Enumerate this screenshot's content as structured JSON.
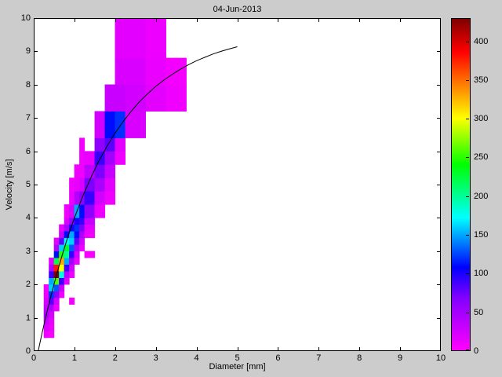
{
  "title": "04-Jun-2013",
  "axes": {
    "xlabel": "Diameter [mm]",
    "ylabel": "Velocity [m/s]",
    "x_ticks": [
      0,
      1,
      2,
      3,
      4,
      5,
      6,
      7,
      8,
      9,
      10
    ],
    "y_ticks": [
      0,
      1,
      2,
      3,
      4,
      5,
      6,
      7,
      8,
      9,
      10
    ],
    "xlim": [
      0,
      10
    ],
    "ylim": [
      0,
      10
    ]
  },
  "colorbar": {
    "min": 0,
    "max": 430,
    "ticks": [
      0,
      50,
      100,
      150,
      200,
      250,
      300,
      350,
      400
    ]
  },
  "colors": {
    "figure_bg": "#cccccc",
    "axes_bg": "#ffffff",
    "axis_line": "#000000",
    "curve": "#000000"
  },
  "colormap": [
    {
      "t": 0.0,
      "color": "#ff00ff"
    },
    {
      "t": 0.16,
      "color": "#8000ff"
    },
    {
      "t": 0.25,
      "color": "#0000ff"
    },
    {
      "t": 0.4,
      "color": "#00ffff"
    },
    {
      "t": 0.56,
      "color": "#00ff00"
    },
    {
      "t": 0.7,
      "color": "#ffff00"
    },
    {
      "t": 0.8,
      "color": "#ff8000"
    },
    {
      "t": 0.9,
      "color": "#ff0000"
    },
    {
      "t": 1.0,
      "color": "#800000"
    }
  ],
  "chart_data": {
    "type": "heatmap",
    "title": "04-Jun-2013",
    "xlabel": "Diameter [mm]",
    "ylabel": "Velocity [m/s]",
    "xlim": [
      0,
      10
    ],
    "ylim": [
      0,
      10
    ],
    "grid": false,
    "colorbar_range": [
      0,
      430
    ],
    "colorbar_ticks": [
      0,
      50,
      100,
      150,
      200,
      250,
      300,
      350,
      400
    ],
    "cells_format": [
      "d_min_mm",
      "d_max_mm",
      "v_min_ms",
      "v_max_ms",
      "count"
    ],
    "cells": [
      [
        0.25,
        0.375,
        0.4,
        0.6,
        8
      ],
      [
        0.25,
        0.375,
        0.6,
        0.8,
        18
      ],
      [
        0.25,
        0.375,
        0.8,
        1.0,
        30
      ],
      [
        0.25,
        0.375,
        1.0,
        1.2,
        45
      ],
      [
        0.25,
        0.375,
        1.2,
        1.4,
        35
      ],
      [
        0.25,
        0.375,
        1.4,
        1.6,
        22
      ],
      [
        0.25,
        0.375,
        1.6,
        1.8,
        12
      ],
      [
        0.25,
        0.375,
        1.8,
        2.0,
        8
      ],
      [
        0.375,
        0.5,
        0.4,
        0.6,
        5
      ],
      [
        0.375,
        0.5,
        0.6,
        0.8,
        8
      ],
      [
        0.375,
        0.5,
        0.8,
        1.0,
        12
      ],
      [
        0.375,
        0.5,
        1.0,
        1.2,
        22
      ],
      [
        0.375,
        0.5,
        1.2,
        1.4,
        45
      ],
      [
        0.375,
        0.5,
        1.4,
        1.6,
        80
      ],
      [
        0.375,
        0.5,
        1.6,
        1.8,
        120
      ],
      [
        0.375,
        0.5,
        1.8,
        2.0,
        160
      ],
      [
        0.375,
        0.5,
        2.0,
        2.2,
        150
      ],
      [
        0.375,
        0.5,
        2.2,
        2.4,
        90
      ],
      [
        0.375,
        0.5,
        2.4,
        2.6,
        40
      ],
      [
        0.375,
        0.5,
        2.6,
        2.8,
        15
      ],
      [
        0.5,
        0.625,
        1.2,
        1.4,
        10
      ],
      [
        0.5,
        0.625,
        1.4,
        1.6,
        20
      ],
      [
        0.5,
        0.625,
        1.6,
        1.8,
        60
      ],
      [
        0.5,
        0.625,
        1.8,
        2.0,
        130
      ],
      [
        0.5,
        0.625,
        2.0,
        2.2,
        260
      ],
      [
        0.5,
        0.625,
        2.2,
        2.4,
        430
      ],
      [
        0.5,
        0.625,
        2.4,
        2.6,
        380
      ],
      [
        0.5,
        0.625,
        2.6,
        2.8,
        220
      ],
      [
        0.5,
        0.625,
        2.8,
        3.0,
        110
      ],
      [
        0.5,
        0.625,
        3.0,
        3.2,
        40
      ],
      [
        0.5,
        0.625,
        3.2,
        3.4,
        15
      ],
      [
        0.625,
        0.75,
        1.6,
        1.8,
        10
      ],
      [
        0.625,
        0.75,
        1.8,
        2.0,
        30
      ],
      [
        0.625,
        0.75,
        2.0,
        2.2,
        90
      ],
      [
        0.625,
        0.75,
        2.2,
        2.4,
        180
      ],
      [
        0.625,
        0.75,
        2.4,
        2.6,
        300
      ],
      [
        0.625,
        0.75,
        2.6,
        2.8,
        330
      ],
      [
        0.625,
        0.75,
        2.8,
        3.0,
        250
      ],
      [
        0.625,
        0.75,
        3.0,
        3.2,
        160
      ],
      [
        0.625,
        0.75,
        3.2,
        3.4,
        80
      ],
      [
        0.625,
        0.75,
        3.4,
        3.6,
        30
      ],
      [
        0.625,
        0.75,
        3.6,
        3.8,
        12
      ],
      [
        0.75,
        0.875,
        2.0,
        2.2,
        15
      ],
      [
        0.75,
        0.875,
        2.2,
        2.4,
        40
      ],
      [
        0.75,
        0.875,
        2.4,
        2.6,
        90
      ],
      [
        0.75,
        0.875,
        2.6,
        2.8,
        150
      ],
      [
        0.75,
        0.875,
        2.8,
        3.0,
        200
      ],
      [
        0.75,
        0.875,
        3.0,
        3.2,
        230
      ],
      [
        0.75,
        0.875,
        3.2,
        3.4,
        170
      ],
      [
        0.75,
        0.875,
        3.4,
        3.6,
        110
      ],
      [
        0.75,
        0.875,
        3.6,
        3.8,
        50
      ],
      [
        0.75,
        0.875,
        3.8,
        4.0,
        20
      ],
      [
        0.75,
        0.875,
        4.0,
        4.4,
        8
      ],
      [
        0.875,
        1.0,
        1.4,
        1.6,
        6
      ],
      [
        0.875,
        1.0,
        2.2,
        2.4,
        10
      ],
      [
        0.875,
        1.0,
        2.4,
        2.6,
        25
      ],
      [
        0.875,
        1.0,
        2.6,
        2.8,
        50
      ],
      [
        0.875,
        1.0,
        2.8,
        3.0,
        90
      ],
      [
        0.875,
        1.0,
        3.0,
        3.2,
        130
      ],
      [
        0.875,
        1.0,
        3.2,
        3.4,
        160
      ],
      [
        0.875,
        1.0,
        3.4,
        3.6,
        150
      ],
      [
        0.875,
        1.0,
        3.6,
        3.8,
        100
      ],
      [
        0.875,
        1.0,
        3.8,
        4.0,
        60
      ],
      [
        0.875,
        1.0,
        4.0,
        4.4,
        25
      ],
      [
        0.875,
        1.0,
        4.4,
        4.8,
        10
      ],
      [
        0.875,
        1.0,
        4.8,
        5.2,
        8
      ],
      [
        1.0,
        1.125,
        2.6,
        2.8,
        10
      ],
      [
        1.0,
        1.125,
        2.8,
        3.0,
        20
      ],
      [
        1.0,
        1.125,
        3.0,
        3.2,
        45
      ],
      [
        1.0,
        1.125,
        3.2,
        3.4,
        80
      ],
      [
        1.0,
        1.125,
        3.4,
        3.6,
        110
      ],
      [
        1.0,
        1.125,
        3.6,
        3.8,
        120
      ],
      [
        1.0,
        1.125,
        3.8,
        4.0,
        100
      ],
      [
        1.0,
        1.125,
        4.0,
        4.4,
        150
      ],
      [
        1.0,
        1.125,
        4.4,
        4.8,
        40
      ],
      [
        1.0,
        1.125,
        4.8,
        5.2,
        12
      ],
      [
        1.0,
        1.125,
        5.2,
        5.6,
        8
      ],
      [
        1.125,
        1.25,
        3.0,
        3.2,
        10
      ],
      [
        1.125,
        1.25,
        3.2,
        3.4,
        25
      ],
      [
        1.125,
        1.25,
        3.4,
        3.6,
        45
      ],
      [
        1.125,
        1.25,
        3.6,
        3.8,
        70
      ],
      [
        1.125,
        1.25,
        3.8,
        4.0,
        90
      ],
      [
        1.125,
        1.25,
        4.0,
        4.4,
        110
      ],
      [
        1.125,
        1.25,
        4.4,
        4.8,
        60
      ],
      [
        1.125,
        1.25,
        4.8,
        5.2,
        20
      ],
      [
        1.125,
        1.25,
        5.2,
        5.6,
        8
      ],
      [
        1.125,
        1.25,
        5.6,
        6.0,
        8
      ],
      [
        1.125,
        1.25,
        6.0,
        6.4,
        6
      ],
      [
        1.25,
        1.5,
        2.8,
        3.0,
        6
      ],
      [
        1.25,
        1.5,
        3.4,
        3.6,
        8
      ],
      [
        1.25,
        1.5,
        3.6,
        3.8,
        15
      ],
      [
        1.25,
        1.5,
        3.8,
        4.0,
        30
      ],
      [
        1.25,
        1.5,
        4.0,
        4.4,
        60
      ],
      [
        1.25,
        1.5,
        4.4,
        4.8,
        90
      ],
      [
        1.25,
        1.5,
        4.8,
        5.2,
        70
      ],
      [
        1.25,
        1.5,
        5.2,
        5.6,
        35
      ],
      [
        1.25,
        1.5,
        5.6,
        6.0,
        12
      ],
      [
        1.5,
        1.75,
        4.0,
        4.4,
        10
      ],
      [
        1.5,
        1.75,
        4.4,
        4.8,
        25
      ],
      [
        1.5,
        1.75,
        4.8,
        5.2,
        45
      ],
      [
        1.5,
        1.75,
        5.2,
        5.6,
        70
      ],
      [
        1.5,
        1.75,
        5.6,
        6.0,
        90
      ],
      [
        1.5,
        1.75,
        6.0,
        6.4,
        60
      ],
      [
        1.5,
        1.75,
        6.4,
        7.2,
        25
      ],
      [
        1.75,
        2.0,
        4.4,
        4.8,
        8
      ],
      [
        1.75,
        2.0,
        4.8,
        5.2,
        15
      ],
      [
        1.75,
        2.0,
        5.2,
        5.6,
        30
      ],
      [
        1.75,
        2.0,
        5.6,
        6.0,
        50
      ],
      [
        1.75,
        2.0,
        6.0,
        6.4,
        80
      ],
      [
        1.75,
        2.0,
        6.4,
        7.2,
        110
      ],
      [
        1.75,
        2.0,
        7.2,
        8.0,
        30
      ],
      [
        2.0,
        2.25,
        5.6,
        6.0,
        8
      ],
      [
        2.0,
        2.25,
        6.0,
        6.4,
        15
      ],
      [
        2.0,
        2.25,
        6.4,
        7.2,
        120
      ],
      [
        2.0,
        2.25,
        7.2,
        8.0,
        30
      ],
      [
        2.0,
        2.25,
        8.0,
        8.8,
        20
      ],
      [
        2.0,
        2.25,
        8.8,
        10.0,
        15
      ],
      [
        2.25,
        2.75,
        6.4,
        7.2,
        20
      ],
      [
        2.25,
        2.75,
        7.2,
        8.0,
        25
      ],
      [
        2.25,
        2.75,
        8.0,
        8.8,
        20
      ],
      [
        2.25,
        2.75,
        8.8,
        10.0,
        15
      ],
      [
        2.75,
        3.25,
        7.2,
        8.0,
        15
      ],
      [
        2.75,
        3.25,
        8.0,
        8.8,
        12
      ],
      [
        2.75,
        3.25,
        8.8,
        10.0,
        10
      ],
      [
        3.25,
        3.75,
        7.2,
        8.0,
        8
      ],
      [
        3.25,
        3.75,
        8.0,
        8.8,
        6
      ]
    ],
    "curve": {
      "name": "terminal-velocity-fit",
      "points": [
        [
          0.0,
          0.0
        ],
        [
          0.11,
          0.0
        ],
        [
          0.2,
          0.52
        ],
        [
          0.3,
          1.05
        ],
        [
          0.4,
          1.55
        ],
        [
          0.5,
          2.02
        ],
        [
          0.6,
          2.46
        ],
        [
          0.7,
          2.88
        ],
        [
          0.8,
          3.28
        ],
        [
          0.9,
          3.65
        ],
        [
          1.0,
          4.0
        ],
        [
          1.2,
          4.64
        ],
        [
          1.4,
          5.2
        ],
        [
          1.6,
          5.71
        ],
        [
          1.8,
          6.15
        ],
        [
          2.0,
          6.55
        ],
        [
          2.2,
          6.9
        ],
        [
          2.4,
          7.21
        ],
        [
          2.6,
          7.49
        ],
        [
          2.8,
          7.73
        ],
        [
          3.0,
          7.95
        ],
        [
          3.2,
          8.14
        ],
        [
          3.4,
          8.31
        ],
        [
          3.6,
          8.46
        ],
        [
          3.8,
          8.6
        ],
        [
          4.0,
          8.72
        ],
        [
          4.2,
          8.82
        ],
        [
          4.4,
          8.92
        ],
        [
          4.6,
          9.0
        ],
        [
          4.8,
          9.07
        ],
        [
          5.0,
          9.14
        ]
      ]
    }
  }
}
